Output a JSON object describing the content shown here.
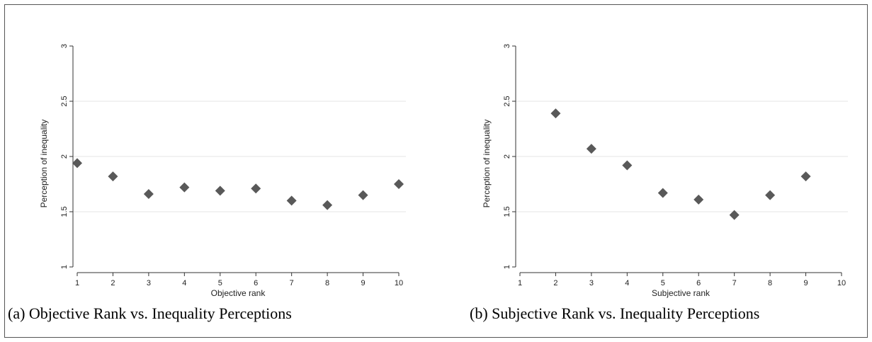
{
  "chart_data": [
    {
      "type": "scatter",
      "xlabel": "Objective rank",
      "ylabel": "Perception of inequality",
      "xlim": [
        1,
        10
      ],
      "ylim": [
        1,
        3
      ],
      "xticks": [
        "1",
        "2",
        "3",
        "4",
        "5",
        "6",
        "7",
        "8",
        "9",
        "10"
      ],
      "yticks": [
        "1",
        "1.5",
        "2",
        "2.5",
        "3"
      ],
      "gridlines_y": [
        1.5,
        2,
        2.5
      ],
      "marker": "diamond",
      "marker_color": "#595959",
      "x": [
        1,
        2,
        3,
        4,
        5,
        6,
        7,
        8,
        9,
        10
      ],
      "y": [
        1.94,
        1.82,
        1.66,
        1.72,
        1.69,
        1.71,
        1.6,
        1.56,
        1.65,
        1.75
      ],
      "caption": "(a) Objective Rank vs. Inequality Perceptions"
    },
    {
      "type": "scatter",
      "xlabel": "Subjective rank",
      "ylabel": "Perception of inequality",
      "xlim": [
        1,
        10
      ],
      "ylim": [
        1,
        3
      ],
      "xticks": [
        "1",
        "2",
        "3",
        "4",
        "5",
        "6",
        "7",
        "8",
        "9",
        "10"
      ],
      "yticks": [
        "1",
        "1.5",
        "2",
        "2.5",
        "3"
      ],
      "gridlines_y": [
        1.5,
        2,
        2.5
      ],
      "marker": "diamond",
      "marker_color": "#595959",
      "x": [
        2,
        3,
        4,
        5,
        6,
        7,
        8,
        9
      ],
      "y": [
        2.39,
        2.07,
        1.92,
        1.67,
        1.61,
        1.47,
        1.65,
        1.82
      ],
      "caption": "(b) Subjective Rank vs. Inequality Perceptions"
    }
  ]
}
